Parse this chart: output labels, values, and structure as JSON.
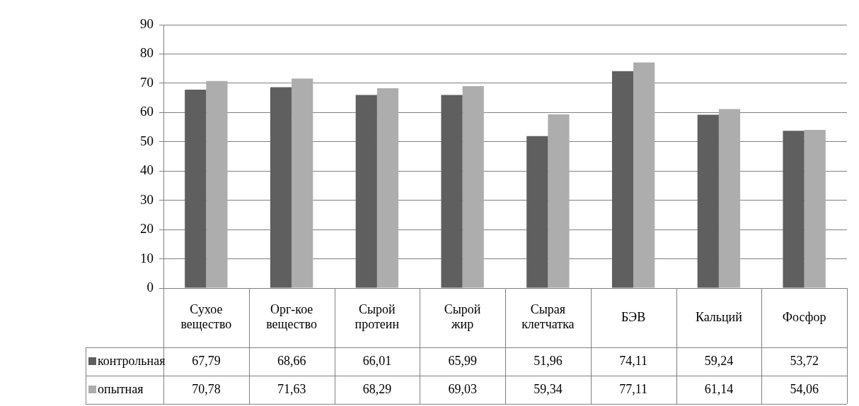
{
  "chart_data": {
    "type": "bar",
    "categories": [
      "Сухое вещество",
      "Орг-кое вещество",
      "Сырой протеин",
      "Сырой жир",
      "Сырая клетчатка",
      "БЭВ",
      "Кальций",
      "Фосфор"
    ],
    "series": [
      {
        "name": "контрольная",
        "color": "#5f5f5f",
        "values": [
          67.79,
          68.66,
          66.01,
          65.99,
          51.96,
          74.11,
          59.24,
          53.72
        ],
        "value_labels": [
          "67,79",
          "68,66",
          "66,01",
          "65,99",
          "51,96",
          "74,11",
          "59,24",
          "53,72"
        ]
      },
      {
        "name": "опытная",
        "color": "#adadad",
        "values": [
          70.78,
          71.63,
          68.29,
          69.03,
          59.34,
          77.11,
          61.14,
          54.06
        ],
        "value_labels": [
          "70,78",
          "71,63",
          "68,29",
          "69,03",
          "59,34",
          "77,11",
          "61,14",
          "54,06"
        ]
      }
    ],
    "ylim": [
      0,
      90
    ],
    "yticks": [
      0,
      10,
      20,
      30,
      40,
      50,
      60,
      70,
      80,
      90
    ],
    "grid": "y",
    "legend": "bottom"
  }
}
